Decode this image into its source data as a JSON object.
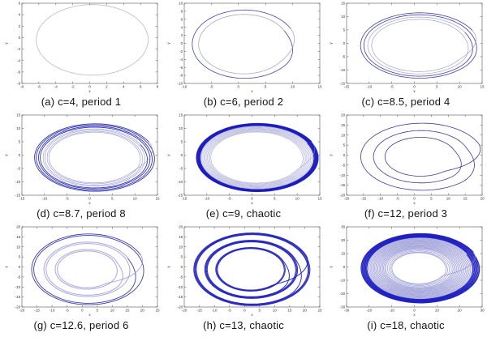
{
  "figure": {
    "background": "#ffffff",
    "description": "3x3 grid of phase portraits (x vs y) showing period-doubling route to chaos for increasing parameter c"
  },
  "chart_data": [
    {
      "id": "a",
      "type": "line",
      "subtype": "phase-portrait",
      "caption": "(a) c=4, period 1",
      "c": 4,
      "behavior": "period 1",
      "loops_visible": 1,
      "xlabel": "x",
      "ylabel": "y",
      "xlim": [
        -8,
        8
      ],
      "ylim": [
        -8,
        6
      ],
      "x_ticks": [
        -8,
        -6,
        -4,
        -2,
        0,
        2,
        4,
        6,
        8
      ],
      "y_ticks": [
        -8,
        -6,
        -4,
        -2,
        0,
        2,
        4,
        6
      ],
      "grid": false,
      "legend": false,
      "orbit": {
        "cx": -0.1,
        "cy": -0.4,
        "a": 6.6,
        "b": 6.15,
        "egg": 0.06,
        "fold_angle": 0.45,
        "transition": 1.1,
        "scales": [
          1.0
        ]
      },
      "style": {
        "color": "#b6b6c0",
        "light": "#c6c6ce",
        "thick": 0.8,
        "thin": 0.8,
        "thick_min": 0
      }
    },
    {
      "id": "b",
      "type": "line",
      "subtype": "phase-portrait",
      "caption": "(b) c=6, period 2",
      "c": 6,
      "behavior": "period 2",
      "loops_visible": 2,
      "xlabel": "x",
      "ylabel": "y",
      "xlim": [
        -10,
        15
      ],
      "ylim": [
        -10,
        10
      ],
      "x_ticks": [
        -10,
        -5,
        0,
        5,
        10,
        15
      ],
      "y_ticks": [
        -10,
        -8,
        -6,
        -4,
        -2,
        0,
        2,
        4,
        6,
        8,
        10
      ],
      "grid": false,
      "legend": false,
      "orbit": {
        "cx": 0.5,
        "cy": -0.2,
        "a": 9.6,
        "b": 8.5,
        "egg": 0.06,
        "fold_angle": 0.45,
        "transition": 1.1,
        "scales": [
          1.0,
          0.87
        ]
      },
      "style": {
        "color": "#3a3aa0",
        "light": "#9292b6",
        "thick": 0.8,
        "thin": 0.8,
        "thick_min": 0.9
      }
    },
    {
      "id": "c",
      "type": "line",
      "subtype": "phase-portrait",
      "caption": "(c) c=8.5, period 4",
      "c": 8.5,
      "behavior": "period 4",
      "loops_visible": 4,
      "xlabel": "x",
      "ylabel": "y",
      "xlim": [
        -15,
        15
      ],
      "ylim": [
        -15,
        15
      ],
      "x_ticks": [
        -15,
        -10,
        -5,
        0,
        5,
        10,
        15
      ],
      "y_ticks": [
        -15,
        -10,
        -5,
        0,
        5,
        10,
        15
      ],
      "grid": false,
      "legend": false,
      "orbit": {
        "cx": 0.4,
        "cy": -0.8,
        "a": 13.1,
        "b": 12.2,
        "egg": 0.06,
        "fold_angle": 0.45,
        "transition": 1.1,
        "scales": [
          1.0,
          0.94,
          0.87,
          0.8
        ]
      },
      "style": {
        "color": "#3434a4",
        "light": "#8c8cc0",
        "thick": 0.8,
        "thin": 0.7,
        "thick_min": 0.9
      }
    },
    {
      "id": "d",
      "type": "line",
      "subtype": "phase-portrait",
      "caption": "(d) c=8.7, period 8",
      "c": 8.7,
      "behavior": "period 8",
      "loops_visible": 8,
      "xlabel": "x",
      "ylabel": "y",
      "xlim": [
        -15,
        15
      ],
      "ylim": [
        -15,
        15
      ],
      "x_ticks": [
        -15,
        -10,
        -5,
        0,
        5,
        10,
        15
      ],
      "y_ticks": [
        -15,
        -10,
        -5,
        0,
        5,
        10,
        15
      ],
      "grid": false,
      "legend": false,
      "orbit": {
        "cx": 0.4,
        "cy": -0.9,
        "a": 13.4,
        "b": 12.6,
        "egg": 0.06,
        "fold_angle": 0.45,
        "transition": 1.1,
        "scales": [
          1.0,
          0.97,
          0.93,
          0.9,
          0.85,
          0.82,
          0.78,
          0.75
        ]
      },
      "style": {
        "color": "#2a2ab0",
        "light": "#8a8ace",
        "thick": 0.9,
        "thin": 0.7,
        "thick_min": 0.88
      }
    },
    {
      "id": "e",
      "type": "line",
      "subtype": "phase-portrait",
      "caption": "(e) c=9, chaotic",
      "c": 9,
      "behavior": "chaotic",
      "loops_visible": 17,
      "xlabel": "x",
      "ylabel": "y",
      "xlim": [
        -15,
        15
      ],
      "ylim": [
        -15,
        15
      ],
      "x_ticks": [
        -15,
        -10,
        -5,
        0,
        5,
        10,
        15
      ],
      "y_ticks": [
        -15,
        -10,
        -5,
        0,
        5,
        10,
        15
      ],
      "grid": false,
      "legend": false,
      "orbit": {
        "cx": 0.4,
        "cy": -0.9,
        "a": 13.5,
        "b": 12.7,
        "egg": 0.06,
        "fold_angle": 0.45,
        "transition": 1.0,
        "scales": [
          1.0,
          0.99,
          0.98,
          0.97,
          0.96,
          0.95,
          0.94,
          0.925,
          0.91,
          0.89,
          0.87,
          0.85,
          0.83,
          0.81,
          0.79,
          0.77,
          0.75
        ]
      },
      "style": {
        "color": "#1c1cbe",
        "light": "#9494cc",
        "thick": 1.2,
        "thin": 0.55,
        "thick_min": 0.93
      }
    },
    {
      "id": "f",
      "type": "line",
      "subtype": "phase-portrait",
      "caption": "(f) c=12, period 3",
      "c": 12,
      "behavior": "period 3",
      "loops_visible": 3,
      "xlabel": "x",
      "ylabel": "y",
      "xlim": [
        -20,
        20
      ],
      "ylim": [
        -20,
        20
      ],
      "x_ticks": [
        -20,
        -15,
        -10,
        -5,
        0,
        5,
        10,
        15,
        20
      ],
      "y_ticks": [
        -20,
        -15,
        -10,
        -5,
        0,
        5,
        10,
        15,
        20
      ],
      "grid": false,
      "legend": false,
      "orbit": {
        "cx": 1.2,
        "cy": -0.8,
        "a": 18.1,
        "b": 16.7,
        "egg": 0.06,
        "fold_angle": 0.4,
        "transition": 1.3,
        "scales": [
          1.0,
          0.78,
          0.58
        ]
      },
      "style": {
        "color": "#32329c",
        "light": "#8c8cc0",
        "thick": 0.8,
        "thin": 0.8,
        "thick_min": 0
      }
    },
    {
      "id": "g",
      "type": "line",
      "subtype": "phase-portrait",
      "caption": "(g) c=12.6, period 6",
      "c": 12.6,
      "behavior": "period 6",
      "loops_visible": 6,
      "xlabel": "x",
      "ylabel": "y",
      "xlim": [
        -20,
        25
      ],
      "ylim": [
        -20,
        20
      ],
      "x_ticks": [
        -20,
        -15,
        -10,
        -5,
        0,
        5,
        10,
        15,
        20,
        25
      ],
      "y_ticks": [
        -20,
        -15,
        -10,
        -5,
        0,
        5,
        10,
        15,
        20
      ],
      "grid": false,
      "legend": false,
      "orbit": {
        "cx": 1.0,
        "cy": -1.2,
        "a": 18.9,
        "b": 17.6,
        "egg": 0.06,
        "fold_angle": 0.4,
        "transition": 1.3,
        "scales": [
          1.0,
          0.96,
          0.77,
          0.73,
          0.56,
          0.52
        ]
      },
      "style": {
        "color": "#3030a8",
        "light": "#9c9cd8",
        "thick": 0.9,
        "thin": 1.1,
        "thick_min": 0.9
      }
    },
    {
      "id": "h",
      "type": "line",
      "subtype": "phase-portrait",
      "caption": "(h) c=13, chaotic",
      "c": 13,
      "behavior": "chaotic",
      "loops_visible": 11,
      "xlabel": "x",
      "ylabel": "y",
      "xlim": [
        -20,
        25
      ],
      "ylim": [
        -20,
        20
      ],
      "x_ticks": [
        -20,
        -15,
        -10,
        -5,
        0,
        5,
        10,
        15,
        20,
        25
      ],
      "y_ticks": [
        -20,
        -15,
        -10,
        -5,
        0,
        5,
        10,
        15,
        20
      ],
      "grid": false,
      "legend": false,
      "orbit": {
        "cx": 1.4,
        "cy": -1.2,
        "a": 19.4,
        "b": 18.1,
        "egg": 0.06,
        "fold_angle": 0.4,
        "transition": 1.3,
        "scales": [
          1.0,
          0.985,
          0.97,
          0.955,
          0.8,
          0.785,
          0.77,
          0.755,
          0.6,
          0.585,
          0.57
        ]
      },
      "style": {
        "color": "#2222bc",
        "light": "#2222bc",
        "thick": 1.0,
        "thin": 1.0,
        "thick_min": 0
      }
    },
    {
      "id": "i",
      "type": "line",
      "subtype": "phase-portrait",
      "caption": "(i) c=18, chaotic",
      "c": 18,
      "behavior": "chaotic",
      "loops_visible": 27,
      "xlabel": "x",
      "ylabel": "y",
      "xlim": [
        -30,
        30
      ],
      "ylim": [
        -30,
        30
      ],
      "x_ticks": [
        -30,
        -20,
        -10,
        0,
        10,
        20,
        30
      ],
      "y_ticks": [
        -30,
        -20,
        -10,
        0,
        10,
        20,
        30
      ],
      "grid": false,
      "legend": false,
      "orbit": {
        "cx": 1.2,
        "cy": -1.0,
        "a": 26.3,
        "b": 25.8,
        "egg": 0.06,
        "fold_angle": 0.45,
        "transition": 1.0,
        "scales": [
          1.0,
          0.98,
          0.96,
          0.94,
          0.92,
          0.9,
          0.88,
          0.86,
          0.84,
          0.82,
          0.8,
          0.78,
          0.76,
          0.74,
          0.72,
          0.7,
          0.68,
          0.66,
          0.64,
          0.62,
          0.6,
          0.58,
          0.56,
          0.53,
          0.5,
          0.47,
          0.45
        ]
      },
      "style": {
        "color": "#1a1ac0",
        "light": "#8888d0",
        "thick": 1.3,
        "thin": 0.75,
        "thick_min": 0.9
      }
    }
  ]
}
